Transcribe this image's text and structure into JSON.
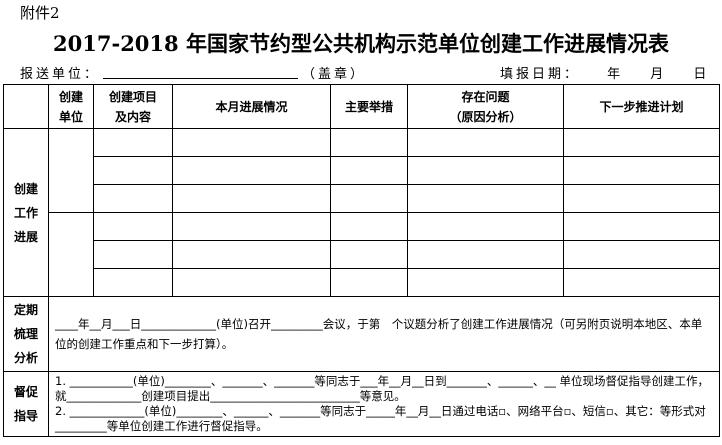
{
  "attachment": "附件2",
  "title": "2017-2018 年国家节约型公共机构示范单位创建工作进展情况表",
  "report_unit_label": "报送单位：",
  "seal_label": "（盖章）",
  "date_label": "填报日期： 年 月 日",
  "headers": [
    "创建\n单位",
    "创建项目\n及内容",
    "本月进展情况",
    "主要举措",
    "存在问题\n（原因分析）",
    "下一步推进计划"
  ],
  "progress_label": "创建\n工作\n进展",
  "analysis": {
    "label": "定期\n梳理\n分析",
    "text": "____年__月___日_____________(单位)召开_________会议，于第　个议题分析了创建工作进展情况（可另附页说明本地区、本单位的创建工作重点和下一步打算）。"
  },
  "supervision": {
    "label": "督促\n指导",
    "line1": "1. ___________(单位)________、_______、_______等同志于___年__月__日到_______、______、__ 单位现场督促指导创建工作，就_____________创建项目提出__________________________等意见。",
    "line2": "2. _____________(单位)________、______、_______等同志于_____年__月__日通过电话▫、网络平台▫、短信▫、其它：等形式对_________等单位创建工作进行督促指导。"
  }
}
